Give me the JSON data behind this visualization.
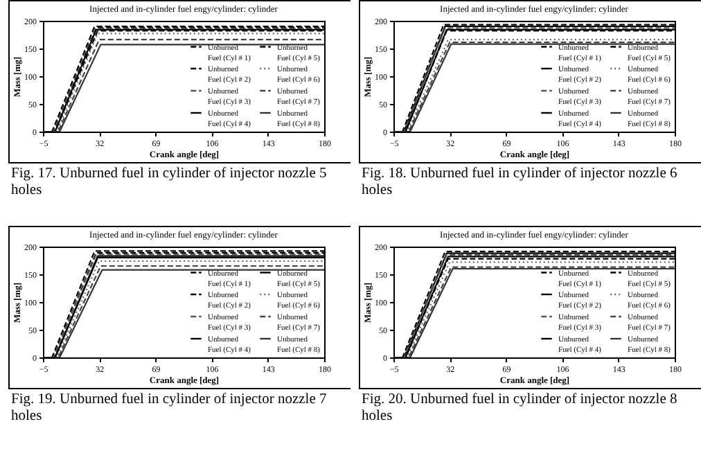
{
  "chart_data": [
    {
      "type": "line",
      "title": "Injected and in-cylinder fuel engy/cylinder: cylinder",
      "xlabel": "Crank angle [deg]",
      "ylabel": "Mass [mg]",
      "xlim": [
        -5,
        180
      ],
      "ylim": [
        0,
        200
      ],
      "xticks": [
        -5,
        32,
        69,
        106,
        143,
        180
      ],
      "yticks": [
        0,
        50,
        100,
        150,
        200
      ],
      "grid": false,
      "legend": "bottom right",
      "annotations": [
        "Fig. 17. Unburned fuel in cylinder of injector nozzle 5 holes"
      ],
      "series": [
        {
          "name": "Unburned Fuel (Cyl # 1)",
          "color": "#000000",
          "line_style": "dashed",
          "x": [
            -5,
            1,
            29,
            180
          ],
          "values": [
            0,
            0,
            190,
            190
          ]
        },
        {
          "name": "Unburned Fuel (Cyl # 2)",
          "color": "#000000",
          "line_style": "dashed",
          "x": [
            -5,
            2,
            30,
            180
          ],
          "values": [
            0,
            0,
            188,
            188
          ]
        },
        {
          "name": "Unburned Fuel (Cyl # 3)",
          "color": "#555555",
          "line_style": "dashed",
          "x": [
            -5,
            2,
            30,
            180
          ],
          "values": [
            0,
            0,
            186,
            186
          ]
        },
        {
          "name": "Unburned Fuel (Cyl # 4)",
          "color": "#000000",
          "line_style": "solid",
          "x": [
            -5,
            3,
            30,
            180
          ],
          "values": [
            0,
            0,
            184,
            184
          ]
        },
        {
          "name": "Unburned Fuel (Cyl # 5)",
          "color": "#000000",
          "line_style": "dashed",
          "x": [
            -5,
            3,
            31,
            180
          ],
          "values": [
            0,
            0,
            182,
            182
          ]
        },
        {
          "name": "Unburned Fuel (Cyl # 6)",
          "color": "#666666",
          "line_style": "dotted",
          "x": [
            -5,
            4,
            31,
            180
          ],
          "values": [
            0,
            0,
            177,
            177
          ]
        },
        {
          "name": "Unburned Fuel (Cyl # 7)",
          "color": "#444444",
          "line_style": "dashed",
          "x": [
            -5,
            5,
            32,
            180
          ],
          "values": [
            0,
            0,
            166,
            166
          ]
        },
        {
          "name": "Unburned Fuel (Cyl # 8)",
          "color": "#333333",
          "line_style": "solid",
          "x": [
            -5,
            6,
            33,
            180
          ],
          "values": [
            0,
            0,
            157,
            157
          ]
        }
      ]
    },
    {
      "type": "line",
      "title": "Injected and in-cylinder fuel engy/cylinder: cylinder",
      "xlabel": "Crank angle [deg]",
      "ylabel": "Mass [mg]",
      "xlim": [
        -5,
        180
      ],
      "ylim": [
        0,
        200
      ],
      "xticks": [
        -5,
        32,
        69,
        106,
        143,
        180
      ],
      "yticks": [
        0,
        50,
        100,
        150,
        200
      ],
      "grid": false,
      "legend": "bottom right",
      "annotations": [
        "Fig. 18. Unburned fuel in cylinder of injector nozzle 6 holes"
      ],
      "series": [
        {
          "name": "Unburned Fuel (Cyl # 1)",
          "color": "#000000",
          "line_style": "dashed",
          "x": [
            -5,
            1,
            28,
            180
          ],
          "values": [
            0,
            0,
            193,
            193
          ]
        },
        {
          "name": "Unburned Fuel (Cyl # 2)",
          "color": "#000000",
          "line_style": "solid",
          "x": [
            -5,
            2,
            29,
            180
          ],
          "values": [
            0,
            0,
            190,
            190
          ]
        },
        {
          "name": "Unburned Fuel (Cyl # 3)",
          "color": "#555555",
          "line_style": "dashed",
          "x": [
            -5,
            2,
            29,
            180
          ],
          "values": [
            0,
            0,
            187,
            187
          ]
        },
        {
          "name": "Unburned Fuel (Cyl # 4)",
          "color": "#000000",
          "line_style": "solid",
          "x": [
            -5,
            3,
            30,
            180
          ],
          "values": [
            0,
            0,
            184,
            184
          ]
        },
        {
          "name": "Unburned Fuel (Cyl # 5)",
          "color": "#000000",
          "line_style": "dashed",
          "x": [
            -5,
            3,
            30,
            180
          ],
          "values": [
            0,
            0,
            182,
            182
          ]
        },
        {
          "name": "Unburned Fuel (Cyl # 6)",
          "color": "#666666",
          "line_style": "dotted",
          "x": [
            -5,
            4,
            31,
            180
          ],
          "values": [
            0,
            0,
            166,
            166
          ]
        },
        {
          "name": "Unburned Fuel (Cyl # 7)",
          "color": "#444444",
          "line_style": "dashed",
          "x": [
            -5,
            5,
            32,
            180
          ],
          "values": [
            0,
            0,
            161,
            161
          ]
        },
        {
          "name": "Unburned Fuel (Cyl # 8)",
          "color": "#333333",
          "line_style": "solid",
          "x": [
            -5,
            6,
            33,
            180
          ],
          "values": [
            0,
            0,
            158,
            158
          ]
        }
      ]
    },
    {
      "type": "line",
      "title": "Injected and in-cylinder fuel engy/cylinder: cylinder",
      "xlabel": "Crank angle [deg]",
      "ylabel": "Mass [mg]",
      "xlim": [
        -5,
        180
      ],
      "ylim": [
        0,
        200
      ],
      "xticks": [
        -5,
        32,
        69,
        106,
        143,
        180
      ],
      "yticks": [
        0,
        50,
        100,
        150,
        200
      ],
      "grid": false,
      "legend": "bottom right",
      "annotations": [
        "Fig. 19. Unburned fuel in cylinder of injector nozzle 7 holes"
      ],
      "series": [
        {
          "name": "Unburned Fuel (Cyl # 1)",
          "color": "#000000",
          "line_style": "dashed",
          "x": [
            -5,
            1,
            29,
            180
          ],
          "values": [
            0,
            0,
            192,
            192
          ]
        },
        {
          "name": "Unburned Fuel (Cyl # 2)",
          "color": "#000000",
          "line_style": "dashed",
          "x": [
            -5,
            2,
            30,
            180
          ],
          "values": [
            0,
            0,
            189,
            189
          ]
        },
        {
          "name": "Unburned Fuel (Cyl # 3)",
          "color": "#555555",
          "line_style": "dashed",
          "x": [
            -5,
            2,
            30,
            180
          ],
          "values": [
            0,
            0,
            186,
            186
          ]
        },
        {
          "name": "Unburned Fuel (Cyl # 4)",
          "color": "#000000",
          "line_style": "solid",
          "x": [
            -5,
            3,
            31,
            180
          ],
          "values": [
            0,
            0,
            183,
            183
          ]
        },
        {
          "name": "Unburned Fuel (Cyl # 5)",
          "color": "#000000",
          "line_style": "solid",
          "x": [
            -5,
            3,
            31,
            180
          ],
          "values": [
            0,
            0,
            180,
            180
          ]
        },
        {
          "name": "Unburned Fuel (Cyl # 6)",
          "color": "#666666",
          "line_style": "dotted",
          "x": [
            -5,
            4,
            32,
            180
          ],
          "values": [
            0,
            0,
            174,
            174
          ]
        },
        {
          "name": "Unburned Fuel (Cyl # 7)",
          "color": "#444444",
          "line_style": "dashed",
          "x": [
            -5,
            5,
            33,
            180
          ],
          "values": [
            0,
            0,
            165,
            165
          ]
        },
        {
          "name": "Unburned Fuel (Cyl # 8)",
          "color": "#333333",
          "line_style": "solid",
          "x": [
            -5,
            6,
            34,
            180
          ],
          "values": [
            0,
            0,
            158,
            158
          ]
        }
      ]
    },
    {
      "type": "line",
      "title": "Injected and in-cylinder fuel engy/cylinder: cylinder",
      "xlabel": "Crank angle [deg]",
      "ylabel": "Mass [mg]",
      "xlim": [
        -5,
        180
      ],
      "ylim": [
        0,
        200
      ],
      "xticks": [
        -5,
        32,
        69,
        106,
        143,
        180
      ],
      "yticks": [
        0,
        50,
        100,
        150,
        200
      ],
      "grid": false,
      "legend": "bottom right",
      "annotations": [
        "Fig. 20. Unburned fuel in cylinder of injector nozzle 8 holes"
      ],
      "series": [
        {
          "name": "Unburned Fuel (Cyl # 1)",
          "color": "#000000",
          "line_style": "dashed",
          "x": [
            -5,
            1,
            29,
            180
          ],
          "values": [
            0,
            0,
            191,
            191
          ]
        },
        {
          "name": "Unburned Fuel (Cyl # 2)",
          "color": "#000000",
          "line_style": "solid",
          "x": [
            -5,
            2,
            30,
            180
          ],
          "values": [
            0,
            0,
            188,
            188
          ]
        },
        {
          "name": "Unburned Fuel (Cyl # 3)",
          "color": "#555555",
          "line_style": "dashed",
          "x": [
            -5,
            2,
            30,
            180
          ],
          "values": [
            0,
            0,
            185,
            185
          ]
        },
        {
          "name": "Unburned Fuel (Cyl # 4)",
          "color": "#000000",
          "line_style": "solid",
          "x": [
            -5,
            3,
            31,
            180
          ],
          "values": [
            0,
            0,
            182,
            182
          ]
        },
        {
          "name": "Unburned Fuel (Cyl # 5)",
          "color": "#000000",
          "line_style": "dashed",
          "x": [
            -5,
            3,
            31,
            180
          ],
          "values": [
            0,
            0,
            178,
            178
          ]
        },
        {
          "name": "Unburned Fuel (Cyl # 6)",
          "color": "#666666",
          "line_style": "dotted",
          "x": [
            -5,
            4,
            32,
            180
          ],
          "values": [
            0,
            0,
            172,
            172
          ]
        },
        {
          "name": "Unburned Fuel (Cyl # 7)",
          "color": "#444444",
          "line_style": "dashed",
          "x": [
            -5,
            5,
            33,
            180
          ],
          "values": [
            0,
            0,
            163,
            163
          ]
        },
        {
          "name": "Unburned Fuel (Cyl # 8)",
          "color": "#333333",
          "line_style": "solid",
          "x": [
            -5,
            6,
            34,
            180
          ],
          "values": [
            0,
            0,
            160,
            160
          ]
        }
      ]
    }
  ]
}
